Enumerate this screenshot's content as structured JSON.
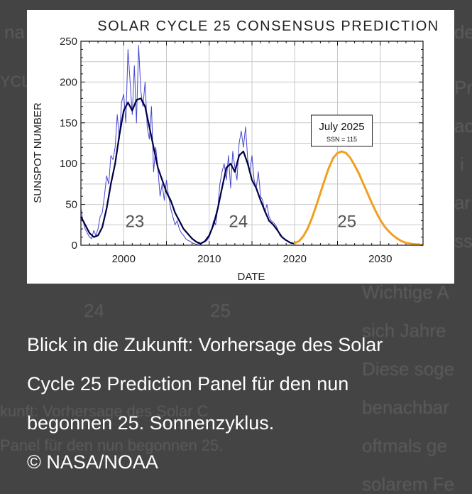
{
  "background_text": {
    "line1": "Wichtige A",
    "line2": "sich Jahre",
    "line3": "Diese soge",
    "line4": "benachbar",
    "line5": "oftmals ge",
    "line6": "solarem Fe",
    "left1": "kunft: Vorhersage des Solar C",
    "left2": "Panel für den nun begonnen 25.",
    "right_top1": "de",
    "right_top2": "Pre",
    "right_top3": "ac",
    "right_top4": "i",
    "right_top5": "ar",
    "right_top6": "ss",
    "left_top": "na",
    "left_ycl": "YCL",
    "ghost24": "24",
    "ghost25": "25",
    "ghost_date": "DATE"
  },
  "caption": {
    "line1": "Blick in die Zukunft: Vorhersage des Solar",
    "line2": "Cycle 25 Prediction Panel für den nun",
    "line3": "begonnen 25. Sonnenzyklus.",
    "credit": "© NASA/NOAA"
  },
  "chart_data": {
    "type": "line",
    "title": "SOLAR CYCLE 25 CONSENSUS PREDICTION",
    "xlabel": "DATE",
    "ylabel": "SUNSPOT NUMBER",
    "xlim": [
      1995,
      2035
    ],
    "ylim": [
      0,
      250
    ],
    "x_ticks": [
      2000,
      2010,
      2020,
      2030
    ],
    "y_ticks": [
      0,
      50,
      100,
      150,
      200,
      250
    ],
    "grid": true,
    "cycle_labels": [
      {
        "text": "23",
        "x": 2001.3,
        "y": 22
      },
      {
        "text": "24",
        "x": 2013.4,
        "y": 22
      },
      {
        "text": "25",
        "x": 2026.1,
        "y": 22
      }
    ],
    "annotation": {
      "title": "July 2025",
      "subtitle": "SSN = 115",
      "x": 2025.5,
      "y": 115
    },
    "colors": {
      "monthly": "#3333cc",
      "smoothed": "#000044",
      "prediction": "#f0a020"
    },
    "series": [
      {
        "style": "monthly",
        "x": [
          1995.0,
          1995.25,
          1995.5,
          1995.75,
          1996.0,
          1996.25,
          1996.5,
          1996.75,
          1997.0,
          1997.25,
          1997.5,
          1997.75,
          1998.0,
          1998.25,
          1998.5,
          1998.75,
          1999.0,
          1999.25,
          1999.5,
          1999.75,
          2000.0,
          2000.25,
          2000.5,
          2000.75,
          2001.0,
          2001.25,
          2001.5,
          2001.75,
          2002.0,
          2002.25,
          2002.5,
          2002.75,
          2003.0,
          2003.25,
          2003.5,
          2003.75,
          2004.0,
          2004.25,
          2004.5,
          2004.75,
          2005.0,
          2005.25,
          2005.5,
          2005.75,
          2006.0,
          2006.25,
          2006.5,
          2006.75,
          2007.0,
          2007.25,
          2007.5,
          2007.75,
          2008.0,
          2008.25,
          2008.5,
          2008.75,
          2009.0,
          2009.25,
          2009.5,
          2009.75,
          2010.0,
          2010.25,
          2010.5,
          2010.75,
          2011.0,
          2011.25,
          2011.5,
          2011.75,
          2012.0,
          2012.25,
          2012.5,
          2012.75,
          2013.0,
          2013.25,
          2013.5,
          2013.75,
          2014.0,
          2014.25,
          2014.5,
          2014.75,
          2015.0,
          2015.25,
          2015.5,
          2015.75,
          2016.0,
          2016.25,
          2016.5,
          2016.75,
          2017.0,
          2017.25,
          2017.5,
          2017.75,
          2018.0,
          2018.25,
          2018.5,
          2018.75,
          2019.0,
          2019.25,
          2019.5,
          2019.75
        ],
        "y": [
          45,
          30,
          20,
          15,
          10,
          8,
          18,
          12,
          20,
          35,
          40,
          60,
          85,
          75,
          110,
          105,
          120,
          160,
          130,
          175,
          185,
          150,
          240,
          200,
          160,
          220,
          150,
          245,
          190,
          170,
          200,
          145,
          130,
          170,
          90,
          120,
          95,
          60,
          75,
          55,
          80,
          60,
          45,
          35,
          25,
          30,
          20,
          15,
          12,
          8,
          6,
          5,
          3,
          2,
          1,
          2,
          1,
          3,
          4,
          6,
          10,
          18,
          30,
          25,
          45,
          75,
          90,
          100,
          80,
          110,
          70,
          115,
          95,
          80,
          125,
          140,
          120,
          145,
          105,
          90,
          110,
          80,
          70,
          90,
          60,
          55,
          40,
          50,
          35,
          30,
          28,
          25,
          20,
          12,
          10,
          8,
          6,
          5,
          3,
          2
        ]
      },
      {
        "style": "smoothed",
        "x": [
          1995.0,
          1995.5,
          1996.0,
          1996.5,
          1997.0,
          1997.5,
          1998.0,
          1998.5,
          1999.0,
          1999.5,
          2000.0,
          2000.5,
          2001.0,
          2001.5,
          2002.0,
          2002.5,
          2003.0,
          2003.5,
          2004.0,
          2004.5,
          2005.0,
          2005.5,
          2006.0,
          2006.5,
          2007.0,
          2007.5,
          2008.0,
          2008.5,
          2009.0,
          2009.5,
          2010.0,
          2010.5,
          2011.0,
          2011.5,
          2012.0,
          2012.5,
          2013.0,
          2013.5,
          2014.0,
          2014.5,
          2015.0,
          2015.5,
          2016.0,
          2016.5,
          2017.0,
          2017.5,
          2018.0,
          2018.5,
          2019.0,
          2019.5,
          2019.9
        ],
        "y": [
          35,
          25,
          15,
          10,
          12,
          22,
          45,
          75,
          100,
          135,
          165,
          175,
          165,
          178,
          180,
          170,
          145,
          120,
          95,
          80,
          65,
          55,
          40,
          30,
          20,
          14,
          8,
          4,
          2,
          5,
          12,
          25,
          45,
          70,
          95,
          100,
          90,
          110,
          115,
          100,
          80,
          70,
          55,
          42,
          30,
          25,
          18,
          10,
          6,
          3,
          2
        ]
      },
      {
        "style": "prediction",
        "x": [
          2019.9,
          2020.5,
          2021.0,
          2021.5,
          2022.0,
          2022.5,
          2023.0,
          2023.5,
          2024.0,
          2024.5,
          2025.0,
          2025.5,
          2026.0,
          2026.5,
          2027.0,
          2027.5,
          2028.0,
          2028.5,
          2029.0,
          2029.5,
          2030.0,
          2030.5,
          2031.0,
          2031.5,
          2032.0,
          2032.5,
          2033.0,
          2033.5,
          2034.0,
          2034.5,
          2035.0
        ],
        "y": [
          2,
          5,
          11,
          20,
          33,
          48,
          64,
          80,
          95,
          107,
          113,
          115,
          113,
          107,
          98,
          88,
          76,
          64,
          52,
          41,
          31,
          23,
          17,
          12,
          8,
          5,
          3,
          2,
          1,
          1,
          0
        ]
      }
    ]
  }
}
